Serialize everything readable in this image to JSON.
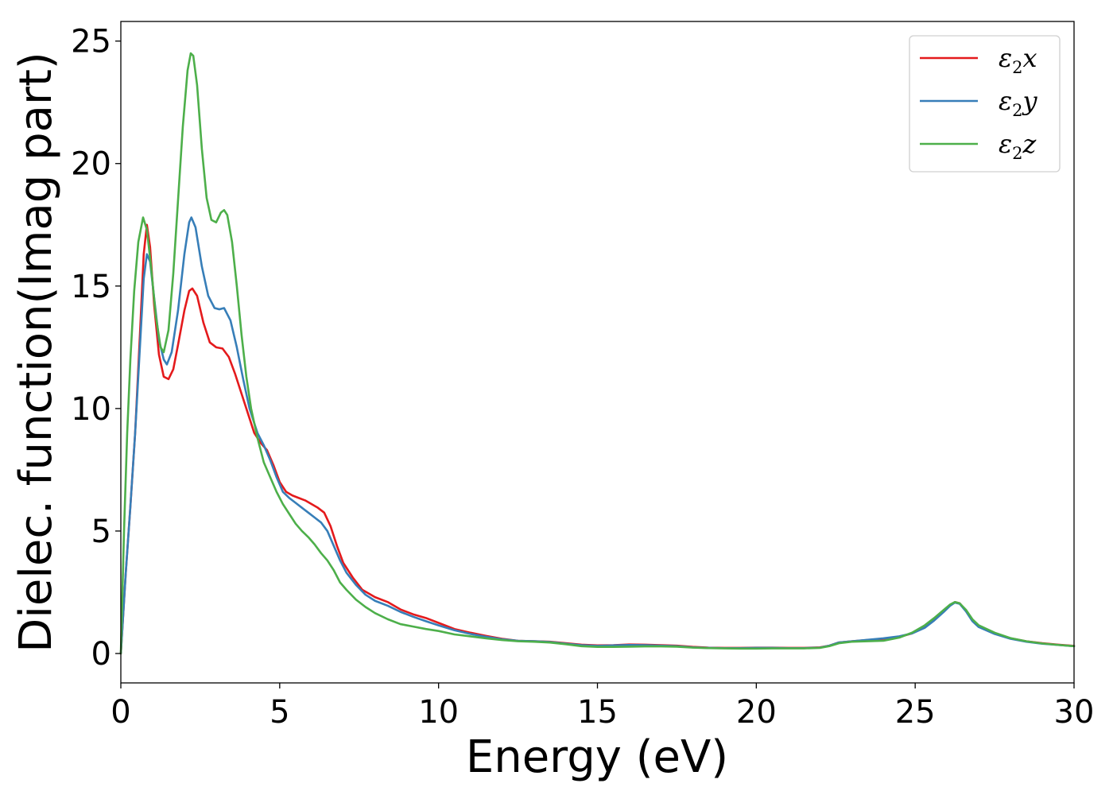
{
  "chart_data": {
    "type": "line",
    "title": "",
    "xlabel": "Energy (eV)",
    "ylabel": "Dielec. function(Imag part)",
    "xlim": [
      0,
      30
    ],
    "ylim": [
      -1.2,
      25.8
    ],
    "xticks": [
      0,
      5,
      10,
      15,
      20,
      25,
      30
    ],
    "yticks": [
      0,
      5,
      10,
      15,
      20,
      25
    ],
    "grid": false,
    "legend_position": "top-right",
    "series": [
      {
        "name": "ε2x",
        "symbol": "ε",
        "sub": "2",
        "suffix": "x",
        "color": "#e41a1c",
        "points": [
          [
            0,
            0
          ],
          [
            0.15,
            3.2
          ],
          [
            0.3,
            6.0
          ],
          [
            0.45,
            9.0
          ],
          [
            0.6,
            13.0
          ],
          [
            0.72,
            16.3
          ],
          [
            0.82,
            17.5
          ],
          [
            0.92,
            16.6
          ],
          [
            1.05,
            14.2
          ],
          [
            1.2,
            12.2
          ],
          [
            1.35,
            11.3
          ],
          [
            1.5,
            11.2
          ],
          [
            1.65,
            11.6
          ],
          [
            1.8,
            12.6
          ],
          [
            2.0,
            14.0
          ],
          [
            2.15,
            14.8
          ],
          [
            2.25,
            14.9
          ],
          [
            2.4,
            14.6
          ],
          [
            2.6,
            13.5
          ],
          [
            2.8,
            12.7
          ],
          [
            3.0,
            12.5
          ],
          [
            3.2,
            12.45
          ],
          [
            3.4,
            12.1
          ],
          [
            3.6,
            11.4
          ],
          [
            3.8,
            10.6
          ],
          [
            4.0,
            9.8
          ],
          [
            4.2,
            9.0
          ],
          [
            4.4,
            8.6
          ],
          [
            4.6,
            8.3
          ],
          [
            4.8,
            7.7
          ],
          [
            5.0,
            7.0
          ],
          [
            5.2,
            6.6
          ],
          [
            5.4,
            6.45
          ],
          [
            5.6,
            6.35
          ],
          [
            5.8,
            6.25
          ],
          [
            6.0,
            6.1
          ],
          [
            6.2,
            5.95
          ],
          [
            6.4,
            5.75
          ],
          [
            6.6,
            5.2
          ],
          [
            6.8,
            4.4
          ],
          [
            7.0,
            3.7
          ],
          [
            7.3,
            3.1
          ],
          [
            7.6,
            2.6
          ],
          [
            8.0,
            2.3
          ],
          [
            8.4,
            2.1
          ],
          [
            8.8,
            1.8
          ],
          [
            9.2,
            1.6
          ],
          [
            9.6,
            1.45
          ],
          [
            10.0,
            1.25
          ],
          [
            10.5,
            1.0
          ],
          [
            11.0,
            0.85
          ],
          [
            11.5,
            0.72
          ],
          [
            12.0,
            0.6
          ],
          [
            12.5,
            0.52
          ],
          [
            13.0,
            0.5
          ],
          [
            13.5,
            0.48
          ],
          [
            14.0,
            0.42
          ],
          [
            14.5,
            0.36
          ],
          [
            15.0,
            0.33
          ],
          [
            15.5,
            0.34
          ],
          [
            16.0,
            0.37
          ],
          [
            16.5,
            0.36
          ],
          [
            17.0,
            0.34
          ],
          [
            17.5,
            0.32
          ],
          [
            18.0,
            0.27
          ],
          [
            18.5,
            0.24
          ],
          [
            19.0,
            0.23
          ],
          [
            19.5,
            0.23
          ],
          [
            20.0,
            0.24
          ],
          [
            20.5,
            0.24
          ],
          [
            21.0,
            0.23
          ],
          [
            21.5,
            0.23
          ],
          [
            22.0,
            0.25
          ],
          [
            22.3,
            0.32
          ],
          [
            22.6,
            0.45
          ],
          [
            23.0,
            0.5
          ],
          [
            23.5,
            0.55
          ],
          [
            24.0,
            0.6
          ],
          [
            24.5,
            0.68
          ],
          [
            24.9,
            0.82
          ],
          [
            25.3,
            1.1
          ],
          [
            25.6,
            1.38
          ],
          [
            25.9,
            1.72
          ],
          [
            26.1,
            1.98
          ],
          [
            26.25,
            2.1
          ],
          [
            26.4,
            2.05
          ],
          [
            26.6,
            1.75
          ],
          [
            26.8,
            1.35
          ],
          [
            27.0,
            1.1
          ],
          [
            27.5,
            0.82
          ],
          [
            28.0,
            0.62
          ],
          [
            28.5,
            0.5
          ],
          [
            29.0,
            0.42
          ],
          [
            29.5,
            0.36
          ],
          [
            30.0,
            0.31
          ]
        ]
      },
      {
        "name": "ε2y",
        "symbol": "ε",
        "sub": "2",
        "suffix": "y",
        "color": "#377eb8",
        "points": [
          [
            0,
            0
          ],
          [
            0.15,
            3.2
          ],
          [
            0.3,
            6.0
          ],
          [
            0.45,
            9.0
          ],
          [
            0.6,
            12.5
          ],
          [
            0.72,
            15.3
          ],
          [
            0.82,
            16.3
          ],
          [
            0.92,
            16.0
          ],
          [
            1.05,
            14.5
          ],
          [
            1.2,
            12.8
          ],
          [
            1.35,
            12.0
          ],
          [
            1.45,
            11.8
          ],
          [
            1.6,
            12.3
          ],
          [
            1.8,
            14.0
          ],
          [
            2.0,
            16.3
          ],
          [
            2.15,
            17.6
          ],
          [
            2.22,
            17.8
          ],
          [
            2.35,
            17.4
          ],
          [
            2.55,
            15.8
          ],
          [
            2.75,
            14.6
          ],
          [
            2.95,
            14.1
          ],
          [
            3.1,
            14.05
          ],
          [
            3.25,
            14.1
          ],
          [
            3.45,
            13.6
          ],
          [
            3.65,
            12.5
          ],
          [
            3.85,
            11.2
          ],
          [
            4.05,
            10.0
          ],
          [
            4.3,
            9.0
          ],
          [
            4.5,
            8.5
          ],
          [
            4.7,
            7.9
          ],
          [
            4.9,
            7.2
          ],
          [
            5.1,
            6.6
          ],
          [
            5.3,
            6.35
          ],
          [
            5.5,
            6.15
          ],
          [
            5.7,
            5.95
          ],
          [
            5.9,
            5.75
          ],
          [
            6.1,
            5.55
          ],
          [
            6.3,
            5.35
          ],
          [
            6.5,
            5.0
          ],
          [
            6.7,
            4.4
          ],
          [
            6.9,
            3.8
          ],
          [
            7.1,
            3.3
          ],
          [
            7.4,
            2.8
          ],
          [
            7.7,
            2.4
          ],
          [
            8.0,
            2.15
          ],
          [
            8.4,
            1.95
          ],
          [
            8.8,
            1.7
          ],
          [
            9.2,
            1.5
          ],
          [
            9.6,
            1.32
          ],
          [
            10.0,
            1.15
          ],
          [
            10.5,
            0.95
          ],
          [
            11.0,
            0.8
          ],
          [
            11.5,
            0.68
          ],
          [
            12.0,
            0.58
          ],
          [
            12.5,
            0.52
          ],
          [
            13.0,
            0.5
          ],
          [
            13.5,
            0.47
          ],
          [
            14.0,
            0.4
          ],
          [
            14.5,
            0.34
          ],
          [
            15.0,
            0.31
          ],
          [
            15.5,
            0.33
          ],
          [
            16.0,
            0.35
          ],
          [
            16.5,
            0.34
          ],
          [
            17.0,
            0.32
          ],
          [
            17.5,
            0.3
          ],
          [
            18.0,
            0.25
          ],
          [
            18.5,
            0.23
          ],
          [
            19.0,
            0.22
          ],
          [
            19.5,
            0.22
          ],
          [
            20.0,
            0.23
          ],
          [
            20.5,
            0.23
          ],
          [
            21.0,
            0.22
          ],
          [
            21.5,
            0.22
          ],
          [
            22.0,
            0.24
          ],
          [
            22.3,
            0.32
          ],
          [
            22.6,
            0.45
          ],
          [
            23.0,
            0.5
          ],
          [
            23.5,
            0.56
          ],
          [
            24.0,
            0.62
          ],
          [
            24.5,
            0.7
          ],
          [
            24.9,
            0.82
          ],
          [
            25.3,
            1.05
          ],
          [
            25.6,
            1.35
          ],
          [
            25.9,
            1.7
          ],
          [
            26.1,
            1.95
          ],
          [
            26.25,
            2.08
          ],
          [
            26.4,
            2.03
          ],
          [
            26.6,
            1.72
          ],
          [
            26.8,
            1.32
          ],
          [
            27.0,
            1.08
          ],
          [
            27.5,
            0.8
          ],
          [
            28.0,
            0.6
          ],
          [
            28.5,
            0.48
          ],
          [
            29.0,
            0.4
          ],
          [
            29.5,
            0.35
          ],
          [
            30.0,
            0.3
          ]
        ]
      },
      {
        "name": "ε2z",
        "symbol": "ε",
        "sub": "2",
        "suffix": "z",
        "color": "#4daf4a",
        "points": [
          [
            0,
            0
          ],
          [
            0.1,
            5.0
          ],
          [
            0.2,
            9.0
          ],
          [
            0.3,
            12.0
          ],
          [
            0.42,
            14.8
          ],
          [
            0.55,
            16.8
          ],
          [
            0.7,
            17.8
          ],
          [
            0.82,
            17.3
          ],
          [
            0.95,
            15.8
          ],
          [
            1.1,
            13.8
          ],
          [
            1.25,
            12.5
          ],
          [
            1.35,
            12.3
          ],
          [
            1.5,
            13.2
          ],
          [
            1.65,
            15.5
          ],
          [
            1.8,
            18.5
          ],
          [
            1.95,
            21.5
          ],
          [
            2.1,
            23.8
          ],
          [
            2.2,
            24.5
          ],
          [
            2.28,
            24.4
          ],
          [
            2.4,
            23.2
          ],
          [
            2.55,
            20.6
          ],
          [
            2.7,
            18.6
          ],
          [
            2.85,
            17.7
          ],
          [
            3.0,
            17.6
          ],
          [
            3.15,
            18.0
          ],
          [
            3.25,
            18.1
          ],
          [
            3.35,
            17.9
          ],
          [
            3.5,
            16.8
          ],
          [
            3.65,
            15.0
          ],
          [
            3.8,
            13.0
          ],
          [
            3.95,
            11.3
          ],
          [
            4.1,
            10.0
          ],
          [
            4.3,
            8.8
          ],
          [
            4.5,
            7.8
          ],
          [
            4.7,
            7.2
          ],
          [
            4.9,
            6.6
          ],
          [
            5.1,
            6.1
          ],
          [
            5.3,
            5.7
          ],
          [
            5.5,
            5.3
          ],
          [
            5.7,
            5.0
          ],
          [
            5.9,
            4.75
          ],
          [
            6.1,
            4.45
          ],
          [
            6.3,
            4.1
          ],
          [
            6.5,
            3.8
          ],
          [
            6.7,
            3.4
          ],
          [
            6.9,
            2.9
          ],
          [
            7.1,
            2.6
          ],
          [
            7.4,
            2.2
          ],
          [
            7.7,
            1.9
          ],
          [
            8.0,
            1.65
          ],
          [
            8.4,
            1.4
          ],
          [
            8.8,
            1.2
          ],
          [
            9.2,
            1.1
          ],
          [
            9.6,
            1.0
          ],
          [
            10.0,
            0.92
          ],
          [
            10.5,
            0.78
          ],
          [
            11.0,
            0.7
          ],
          [
            11.5,
            0.62
          ],
          [
            12.0,
            0.55
          ],
          [
            12.5,
            0.5
          ],
          [
            13.0,
            0.48
          ],
          [
            13.5,
            0.45
          ],
          [
            14.0,
            0.38
          ],
          [
            14.5,
            0.3
          ],
          [
            15.0,
            0.27
          ],
          [
            15.5,
            0.27
          ],
          [
            16.0,
            0.28
          ],
          [
            16.5,
            0.29
          ],
          [
            17.0,
            0.29
          ],
          [
            17.5,
            0.28
          ],
          [
            18.0,
            0.24
          ],
          [
            18.5,
            0.22
          ],
          [
            19.0,
            0.21
          ],
          [
            19.5,
            0.2
          ],
          [
            20.0,
            0.2
          ],
          [
            20.5,
            0.21
          ],
          [
            21.0,
            0.21
          ],
          [
            21.5,
            0.21
          ],
          [
            22.0,
            0.23
          ],
          [
            22.3,
            0.3
          ],
          [
            22.6,
            0.42
          ],
          [
            23.0,
            0.48
          ],
          [
            23.5,
            0.5
          ],
          [
            24.0,
            0.52
          ],
          [
            24.5,
            0.65
          ],
          [
            24.9,
            0.85
          ],
          [
            25.3,
            1.15
          ],
          [
            25.6,
            1.45
          ],
          [
            25.9,
            1.78
          ],
          [
            26.1,
            2.0
          ],
          [
            26.25,
            2.1
          ],
          [
            26.4,
            2.05
          ],
          [
            26.6,
            1.78
          ],
          [
            26.8,
            1.4
          ],
          [
            27.0,
            1.15
          ],
          [
            27.5,
            0.85
          ],
          [
            28.0,
            0.63
          ],
          [
            28.5,
            0.5
          ],
          [
            29.0,
            0.41
          ],
          [
            29.5,
            0.35
          ],
          [
            30.0,
            0.3
          ]
        ]
      }
    ]
  }
}
